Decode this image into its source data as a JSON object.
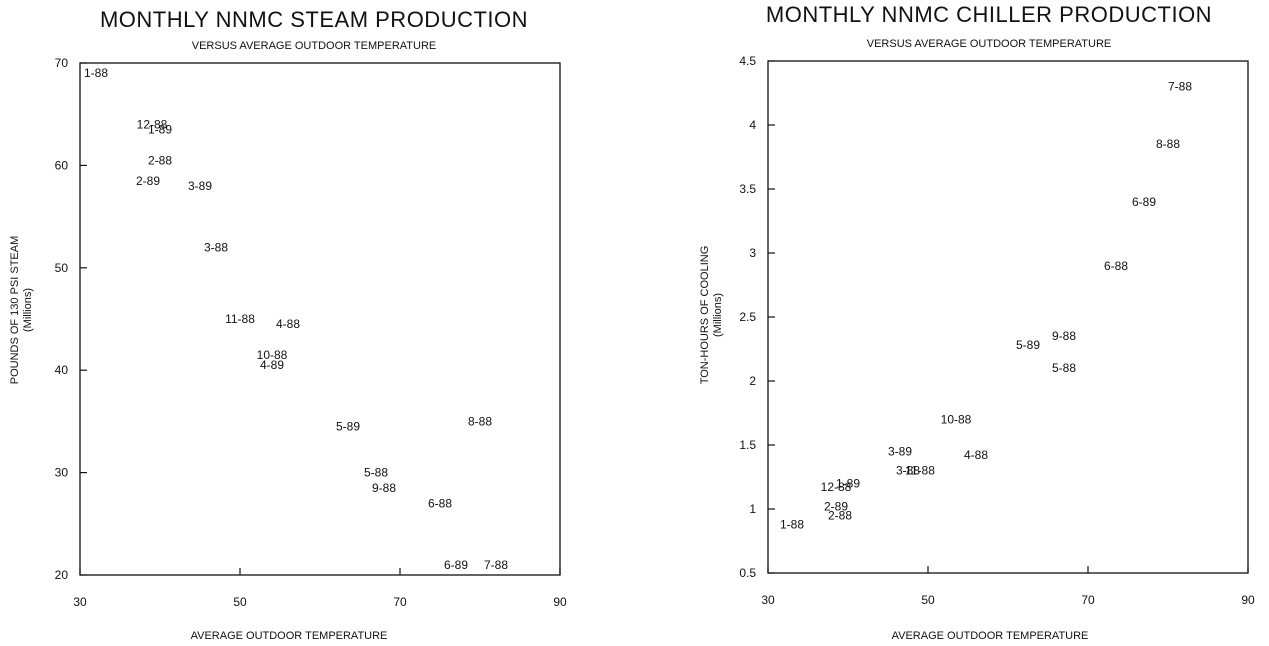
{
  "chart_data": [
    {
      "type": "scatter",
      "title": "MONTHLY NNMC STEAM PRODUCTION",
      "subtitle": "VERSUS AVERAGE OUTDOOR TEMPERATURE",
      "xlabel": "AVERAGE OUTDOOR TEMPERATURE",
      "ylabel": "POUNDS OF 130 PSI STEAM",
      "ylabel_unit": "(Millions)",
      "xlim": [
        30,
        90
      ],
      "ylim": [
        20,
        70
      ],
      "xticks": [
        30,
        50,
        70,
        90
      ],
      "yticks": [
        20,
        30,
        40,
        50,
        60,
        70
      ],
      "points": [
        {
          "label": "1-88",
          "x": 32,
          "y": 69
        },
        {
          "label": "12-88",
          "x": 39,
          "y": 64
        },
        {
          "label": "1-89",
          "x": 40,
          "y": 63.5
        },
        {
          "label": "2-88",
          "x": 40,
          "y": 60.5
        },
        {
          "label": "2-89",
          "x": 38.5,
          "y": 58.5
        },
        {
          "label": "3-89",
          "x": 45,
          "y": 58
        },
        {
          "label": "3-88",
          "x": 47,
          "y": 52
        },
        {
          "label": "11-88",
          "x": 50,
          "y": 45
        },
        {
          "label": "4-88",
          "x": 56,
          "y": 44.5
        },
        {
          "label": "10-88",
          "x": 54,
          "y": 41.5
        },
        {
          "label": "4-89",
          "x": 54,
          "y": 40.5
        },
        {
          "label": "5-89",
          "x": 63.5,
          "y": 34.5
        },
        {
          "label": "8-88",
          "x": 80,
          "y": 35
        },
        {
          "label": "5-88",
          "x": 67,
          "y": 30
        },
        {
          "label": "9-88",
          "x": 68,
          "y": 28.5
        },
        {
          "label": "6-88",
          "x": 75,
          "y": 27
        },
        {
          "label": "6-89",
          "x": 77,
          "y": 21
        },
        {
          "label": "7-88",
          "x": 82,
          "y": 21
        }
      ]
    },
    {
      "type": "scatter",
      "title": "MONTHLY NNMC CHILLER PRODUCTION",
      "subtitle": "VERSUS AVERAGE OUTDOOR TEMPERATURE",
      "xlabel": "AVERAGE OUTDOOR TEMPERATURE",
      "ylabel": "TON-HOURS OF COOLING",
      "ylabel_unit": "(Millions)",
      "xlim": [
        30,
        90
      ],
      "ylim": [
        0.5,
        4.5
      ],
      "xticks": [
        30,
        50,
        70,
        90
      ],
      "yticks": [
        0.5,
        1,
        1.5,
        2,
        2.5,
        3,
        3.5,
        4,
        4.5
      ],
      "points": [
        {
          "label": "7-88",
          "x": 81.5,
          "y": 4.3
        },
        {
          "label": "8-88",
          "x": 80,
          "y": 3.85
        },
        {
          "label": "6-89",
          "x": 77,
          "y": 3.4
        },
        {
          "label": "6-88",
          "x": 73.5,
          "y": 2.9
        },
        {
          "label": "9-88",
          "x": 67,
          "y": 2.35
        },
        {
          "label": "5-89",
          "x": 62.5,
          "y": 2.28
        },
        {
          "label": "5-88",
          "x": 67,
          "y": 2.1
        },
        {
          "label": "10-88",
          "x": 53.5,
          "y": 1.7
        },
        {
          "label": "4-88",
          "x": 56,
          "y": 1.42
        },
        {
          "label": "3-89",
          "x": 46.5,
          "y": 1.45
        },
        {
          "label": "3-88",
          "x": 47.5,
          "y": 1.3
        },
        {
          "label": "11-88",
          "x": 49,
          "y": 1.3
        },
        {
          "label": "12-88",
          "x": 38.5,
          "y": 1.17
        },
        {
          "label": "1-89",
          "x": 40,
          "y": 1.2
        },
        {
          "label": "2-89",
          "x": 38.5,
          "y": 1.02
        },
        {
          "label": "2-88",
          "x": 39,
          "y": 0.95
        },
        {
          "label": "1-88",
          "x": 33,
          "y": 0.88
        }
      ]
    }
  ]
}
